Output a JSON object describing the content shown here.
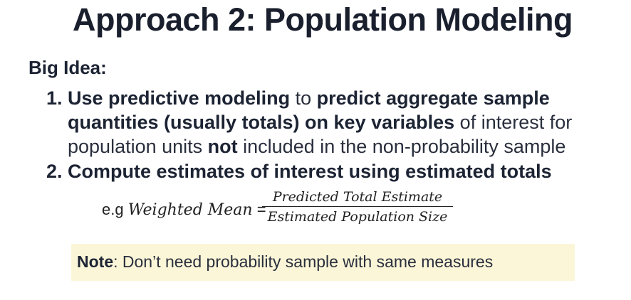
{
  "slide": {
    "title": "Approach 2: Population Modeling",
    "big_idea_label": "Big Idea:",
    "items": [
      {
        "number": "1.",
        "line1_bold_a": "Use predictive modeling",
        "line1_plain_a": " to ",
        "line1_bold_b": "predict aggregate sample",
        "line2_bold": "quantities (usually totals) on key variables",
        "line2_plain": " of interest for",
        "line3_plain_a": "population units ",
        "line3_bold": "not",
        "line3_plain_b": " included in the non-probability sample"
      },
      {
        "number": "2.",
        "text": "Compute estimates of interest using estimated totals"
      }
    ],
    "formula": {
      "prefix": "e.g ",
      "lhs": "Weighted Mean",
      "equals": " =",
      "numerator": "Predicted Total Estimate",
      "denominator": "Estimated Population Size"
    },
    "note": {
      "label": "Note",
      "text": ": Don’t need probability sample with same measures",
      "background": "#fbf6d8"
    }
  }
}
